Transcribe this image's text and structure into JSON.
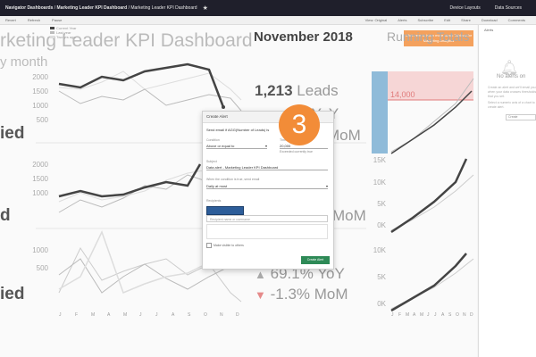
{
  "topbar": {
    "breadcrumb_1": "Navigator Dashboards",
    "breadcrumb_sep": "/",
    "breadcrumb_2": "Marketing Leader KPI Dashboard",
    "breadcrumb_3": "Marketing Leader KPI Dashboard",
    "device_layouts": "Device Layouts",
    "data_sources": "Data Sources"
  },
  "toolbar": {
    "left": [
      "Revert",
      "Refresh",
      "Pause"
    ],
    "right": [
      "View: Original",
      "Alerts",
      "Subscribe",
      "Edit",
      "Share",
      "Download",
      "Comments"
    ]
  },
  "dashboard": {
    "title": "rketing Leader KPI Dashboard",
    "by_month": "y month",
    "cta": "Click here to learn more about Tableau for Marketing Analytics",
    "legend": [
      "Current Year",
      "Last year",
      "Two yrs ago"
    ],
    "legend_colors": [
      "#444444",
      "#bbbbbb",
      "#dddddd"
    ],
    "month_header": "November 2018",
    "running_totals": "Running Totals",
    "row_labels": [
      "ied",
      "d",
      "ied"
    ],
    "left_yticks": [
      "2000",
      "1500",
      "1000",
      "500"
    ],
    "mid_yticks_1": [
      "2000",
      "1500",
      "1000"
    ],
    "mid_yticks_2": [
      "1000",
      "500"
    ],
    "rt_yticks_1": [
      "20K",
      "15K",
      "10K",
      "5K",
      "0K"
    ],
    "rt_yticks_2": [
      "15K",
      "10K",
      "5K",
      "0K"
    ],
    "rt_yticks_3": [
      "10K",
      "5K",
      "0K"
    ],
    "rt_goal": "14,000",
    "kpi_leads_value": "1,213",
    "kpi_leads_label": "Leads",
    "kpi_yoy_1": "YoY",
    "kpi_mom_1": "MoM",
    "kpi_mom_2": "MoM",
    "kpi_yoy_3": "69.1% YoY",
    "kpi_mom_3": "-1.3% MoM",
    "months": [
      "J",
      "F",
      "M",
      "A",
      "M",
      "J",
      "J",
      "A",
      "S",
      "O",
      "N",
      "D"
    ]
  },
  "dialog": {
    "title": "Create Alert",
    "send_email": "Send email if  AGG(Number of Leads)  is",
    "condition_label": "Condition",
    "condition_value": "Above or equal to",
    "threshold_label": "Threshold",
    "threshold_value": "20,000",
    "threshold_hint": "Exceeded currently true",
    "subject_label": "Subject",
    "subject_value": "Data alert - Marketing Leader KPI Dashboard",
    "when_label": "When the condition is true, send email",
    "when_value": "Daily at most",
    "recipients_label": "Recipients",
    "recipients_placeholder": "Recipient name or username",
    "visible_label": "Make visible to others",
    "create_button": "Create Alert"
  },
  "step_number": "3",
  "alerts_panel": {
    "header": "Alerts",
    "no_alerts": "No alerts on",
    "desc": "Create an alert and we'll email you when your data crosses thresholds that you set.",
    "desc2": "Select a numeric axis of a chart to create alert.",
    "button": "Create"
  }
}
